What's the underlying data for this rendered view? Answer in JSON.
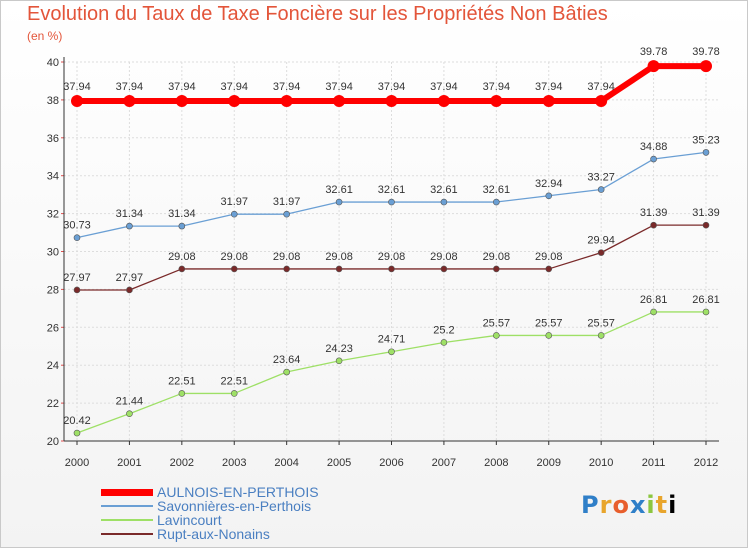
{
  "chart_data": {
    "type": "line",
    "title": "Evolution du Taux de Taxe Foncière sur les Propriétés Non Bâties",
    "ylabel": "(en %)",
    "xlabel": "",
    "x": [
      "2000",
      "2001",
      "2002",
      "2003",
      "2004",
      "2005",
      "2006",
      "2007",
      "2008",
      "2009",
      "2010",
      "2011",
      "2012"
    ],
    "ylim": [
      20,
      40
    ],
    "yticks": [
      20,
      22,
      24,
      26,
      28,
      30,
      32,
      34,
      36,
      38,
      40
    ],
    "grid": true,
    "series": [
      {
        "name": "AULNOIS-EN-PERTHOIS",
        "color": "#ff0000",
        "values": [
          37.94,
          37.94,
          37.94,
          37.94,
          37.94,
          37.94,
          37.94,
          37.94,
          37.94,
          37.94,
          37.94,
          39.78,
          39.78
        ]
      },
      {
        "name": "Savonnières-en-Perthois",
        "color": "#6a9fd4",
        "values": [
          30.73,
          31.34,
          31.34,
          31.97,
          31.97,
          32.61,
          32.61,
          32.61,
          32.61,
          32.94,
          33.27,
          34.88,
          35.23
        ]
      },
      {
        "name": "Lavincourt",
        "color": "#9ee066",
        "values": [
          20.42,
          21.44,
          22.51,
          22.51,
          23.64,
          24.23,
          24.71,
          25.2,
          25.57,
          25.57,
          25.57,
          26.81,
          26.81
        ]
      },
      {
        "name": "Rupt-aux-Nonains",
        "color": "#7a2a2a",
        "values": [
          27.97,
          27.97,
          29.08,
          29.08,
          29.08,
          29.08,
          29.08,
          29.08,
          29.08,
          29.08,
          29.94,
          31.39,
          31.39
        ]
      }
    ],
    "labels": [
      [
        "37.94",
        "37.94",
        "37.94",
        "37.94",
        "37.94",
        "37.94",
        "37.94",
        "37.94",
        "37.94",
        "37.94",
        "37.94",
        "39.78",
        "39.78"
      ],
      [
        "30.73",
        "31.34",
        "31.34",
        "31.97",
        "31.97",
        "32.61",
        "32.61",
        "32.61",
        "32.61",
        "32.94",
        "33.27",
        "34.88",
        "35.23"
      ],
      [
        "20.42",
        "21.44",
        "22.51",
        "22.51",
        "23.64",
        "24.23",
        "24.71",
        "25.2",
        "25.57",
        "25.57",
        "25.57",
        "26.81",
        "26.81"
      ],
      [
        "27.97",
        "27.97",
        "29.08",
        "29.08",
        "29.08",
        "29.08",
        "29.08",
        "29.08",
        "29.08",
        "29.08",
        "29.94",
        "31.39",
        "31.39"
      ]
    ],
    "legend_position": "bottom-left"
  },
  "logo_text": "Proxiti"
}
